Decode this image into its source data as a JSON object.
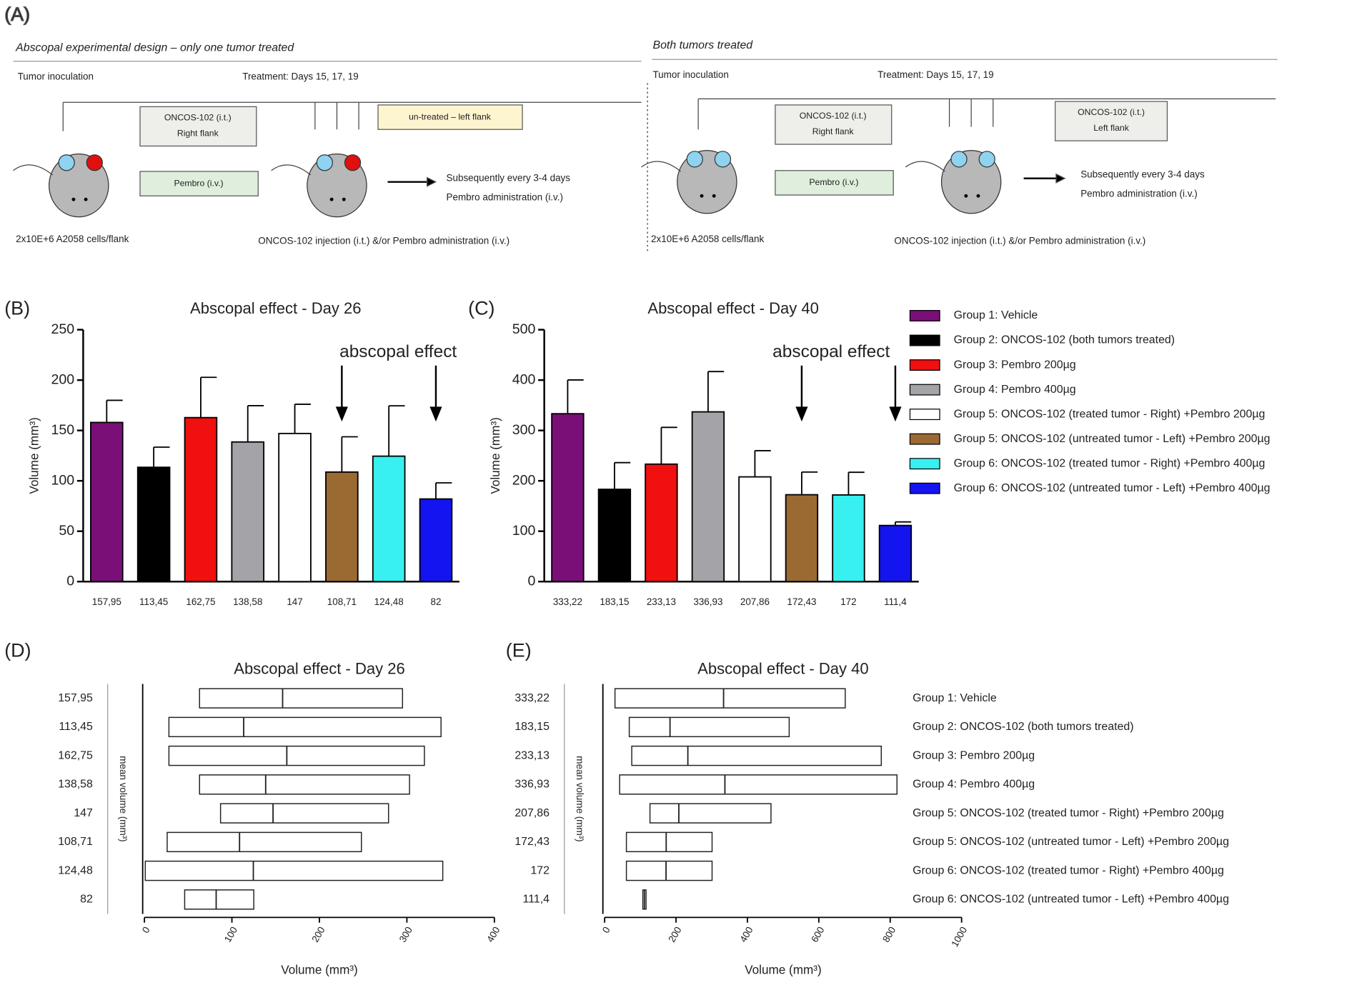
{
  "panel_a": {
    "label": "(A)",
    "left": {
      "title": "Abscopal experimental design – only one tumor treated",
      "inoculation": "Tumor inoculation",
      "treatment": "Treatment: Days 15, 17, 19",
      "oncos_box": [
        "ONCOS-102 (i.t.)",
        "Right flank"
      ],
      "untreated_box": "un-treated – left flank",
      "pembro_box": "Pembro (i.v.)",
      "subsequent": [
        "Subsequently every 3-4 days",
        "Pembro administration (i.v.)"
      ],
      "cells": "2x10E+6 A2058 cells/flank",
      "injection": "ONCOS-102  injection (i.t.) &/or Pembro administration (i.v.)"
    },
    "right": {
      "title": "Both tumors treated",
      "inoculation": "Tumor inoculation",
      "treatment": "Treatment: Days 15, 17, 19",
      "oncos_right_box": [
        "ONCOS-102 (i.t.)",
        "Right flank"
      ],
      "oncos_left_box": [
        "ONCOS-102 (i.t.)",
        "Left flank"
      ],
      "pembro_box": "Pembro (i.v.)",
      "subsequent": [
        "Subsequently every 3-4 days",
        "Pembro administration (i.v.)"
      ],
      "cells": "2x10E+6 A2058 cells/flank",
      "injection": "ONCOS-102  injection (i.t.) &/or Pembro administration (i.v.)"
    }
  },
  "legend": [
    {
      "name": "Group 1: Vehicle",
      "color": "#7a0f78"
    },
    {
      "name": "Group 2: ONCOS-102 (both tumors treated)",
      "color": "#000000"
    },
    {
      "name": "Group 3: Pembro 200µg",
      "color": "#f01010"
    },
    {
      "name": "Group 4: Pembro 400µg",
      "color": "#a3a3a8"
    },
    {
      "name": "Group 5: ONCOS-102 (treated tumor - Right) +Pembro 200µg",
      "color": "#ffffff"
    },
    {
      "name": "Group 5: ONCOS-102 (untreated tumor - Left) +Pembro 200µg",
      "color": "#9b6a33"
    },
    {
      "name": "Group 6: ONCOS-102 (treated tumor - Right) +Pembro 400µg",
      "color": "#38f0f0"
    },
    {
      "name": "Group 6: ONCOS-102 (untreated tumor - Left) +Pembro 400µg",
      "color": "#1414f0"
    }
  ],
  "chart_data": [
    {
      "type": "bar",
      "panel_label": "(B)",
      "title": "Abscopal effect - Day 26",
      "y_label": "Volume (mm³)",
      "annotation": "abscopal effect",
      "values": [
        157.95,
        113.45,
        162.75,
        138.58,
        147,
        108.71,
        124.48,
        82
      ],
      "value_labels": [
        "157,95",
        "113,45",
        "162,75",
        "138,58",
        "147",
        "108,71",
        "124,48",
        "82"
      ],
      "errors": [
        22,
        20,
        40,
        36,
        29,
        35,
        50,
        16
      ],
      "colors": [
        "#7a0f78",
        "#000000",
        "#f01010",
        "#a3a3a8",
        "#ffffff",
        "#9b6a33",
        "#38f0f0",
        "#1414f0"
      ],
      "ylim": [
        0,
        250
      ],
      "yticks": [
        0,
        50,
        100,
        150,
        200,
        250
      ]
    },
    {
      "type": "bar",
      "panel_label": "(C)",
      "title": "Abscopal effect - Day 40",
      "y_label": "Volume (mm³)",
      "annotation": "abscopal effect",
      "values": [
        333.22,
        183.15,
        233.13,
        336.93,
        207.86,
        172.43,
        172,
        111.4
      ],
      "value_labels": [
        "333,22",
        "183,15",
        "233,13",
        "336,93",
        "207,86",
        "172,43",
        "172",
        "111,4"
      ],
      "errors": [
        67,
        53,
        73,
        80,
        52,
        45,
        45,
        7
      ],
      "colors": [
        "#7a0f78",
        "#000000",
        "#f01010",
        "#a3a3a8",
        "#ffffff",
        "#9b6a33",
        "#38f0f0",
        "#1414f0"
      ],
      "ylim": [
        0,
        500
      ],
      "yticks": [
        0,
        100,
        200,
        300,
        400,
        500
      ]
    },
    {
      "type": "range-bar",
      "panel_label": "(D)",
      "title": "Abscopal effect - Day 26",
      "y_label": "mean volume (mm³)",
      "x_label": "Volume (mm³)",
      "categories": [
        "157,95",
        "113,45",
        "162,75",
        "138,58",
        "147",
        "108,71",
        "124,48",
        "82"
      ],
      "values": [
        157.95,
        113.45,
        162.75,
        138.58,
        147,
        108.71,
        124.48,
        82
      ],
      "low": [
        63,
        28,
        28,
        63,
        87,
        26,
        1,
        46
      ],
      "high": [
        295,
        339,
        320,
        303,
        279,
        248,
        341,
        125
      ],
      "xlim": [
        0,
        400
      ],
      "xticks": [
        0,
        100,
        200,
        300,
        400
      ]
    },
    {
      "type": "range-bar",
      "panel_label": "(E)",
      "title": "Abscopal effect - Day 40",
      "y_label": "mean volume (mm³)",
      "x_label": "Volume (mm³)",
      "categories": [
        "333,22",
        "183,15",
        "233,13",
        "336,93",
        "207,86",
        "172,43",
        "172",
        "111,4"
      ],
      "values": [
        333.22,
        183.15,
        233.13,
        336.93,
        207.86,
        172.43,
        172,
        111.4
      ],
      "low": [
        29,
        69,
        76,
        42,
        127,
        61,
        61,
        107
      ],
      "high": [
        674,
        517,
        775,
        819,
        466,
        301,
        301,
        116
      ],
      "group_labels": [
        "Group 1: Vehicle",
        "Group 2: ONCOS-102 (both tumors treated)",
        "Group 3: Pembro 200µg",
        "Group 4: Pembro 400µg",
        "Group 5: ONCOS-102 (treated tumor - Right) +Pembro 200µg",
        "Group 5: ONCOS-102 (untreated tumor - Left) +Pembro 200µg",
        "Group 6: ONCOS-102 (treated tumor - Right) +Pembro 400µg",
        "Group 6: ONCOS-102 (untreated tumor - Left) +Pembro 400µg"
      ],
      "xlim": [
        0,
        1000
      ],
      "xticks": [
        0,
        200,
        400,
        600,
        800,
        1000
      ]
    }
  ]
}
